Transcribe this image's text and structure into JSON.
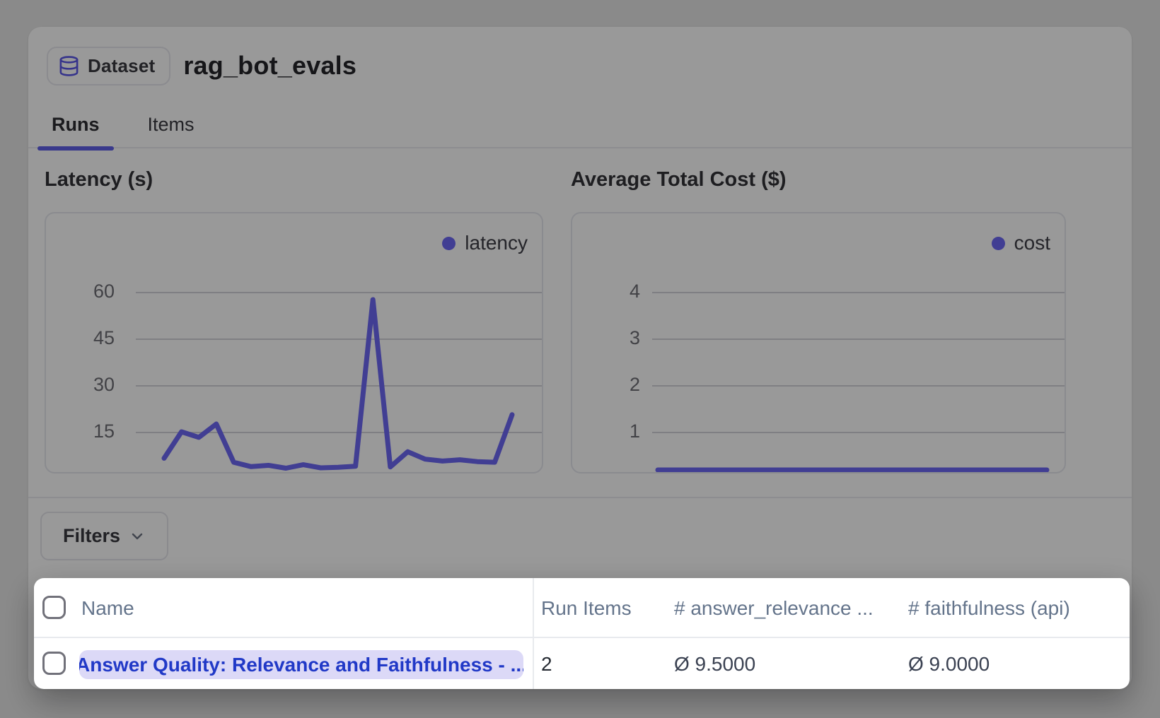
{
  "header": {
    "badge_label": "Dataset",
    "title": "rag_bot_evals"
  },
  "tabs": [
    {
      "label": "Runs",
      "active": true
    },
    {
      "label": "Items",
      "active": false
    }
  ],
  "filters": {
    "label": "Filters"
  },
  "chart_data": [
    {
      "type": "line",
      "title": "Latency (s)",
      "legend_position": "top-right",
      "grid": "horizontal",
      "yticks": [
        60,
        45,
        30,
        15
      ],
      "ylim": [
        0,
        85
      ],
      "series": [
        {
          "name": "latency",
          "values": [
            6.5,
            15,
            13.2,
            17.5,
            5.2,
            3.8,
            4.2,
            3.3,
            4.4,
            3.4,
            3.6,
            3.9,
            57.5,
            3.7,
            8.6,
            6.2,
            5.6,
            6,
            5.4,
            5.2,
            20.5
          ]
        }
      ]
    },
    {
      "type": "line",
      "title": "Average Total Cost ($)",
      "legend_position": "top-right",
      "grid": "horizontal",
      "yticks": [
        4,
        3,
        2,
        1
      ],
      "ylim": [
        0,
        5.6
      ],
      "series": [
        {
          "name": "cost",
          "values": [
            0.02,
            0.02,
            0.02,
            0.02,
            0.02,
            0.02,
            0.02,
            0.02,
            0.02,
            0.02
          ]
        }
      ]
    }
  ],
  "table": {
    "columns": [
      "Name",
      "Run Items",
      "# answer_relevance ...",
      "# faithfulness (api)"
    ],
    "rows": [
      {
        "name": "Answer Quality: Relevance and Faithfulness - ...",
        "run_items": "2",
        "answer_relevance": "Ø 9.5000",
        "faithfulness": "Ø 9.0000"
      }
    ]
  },
  "colors": {
    "accent": "#5f5fe8",
    "chart_line": "#6d68f5",
    "pill_bg": "#dcd9f7",
    "pill_text": "#2139c7",
    "dim_overlay": "rgba(0,0,0,0.40)"
  }
}
